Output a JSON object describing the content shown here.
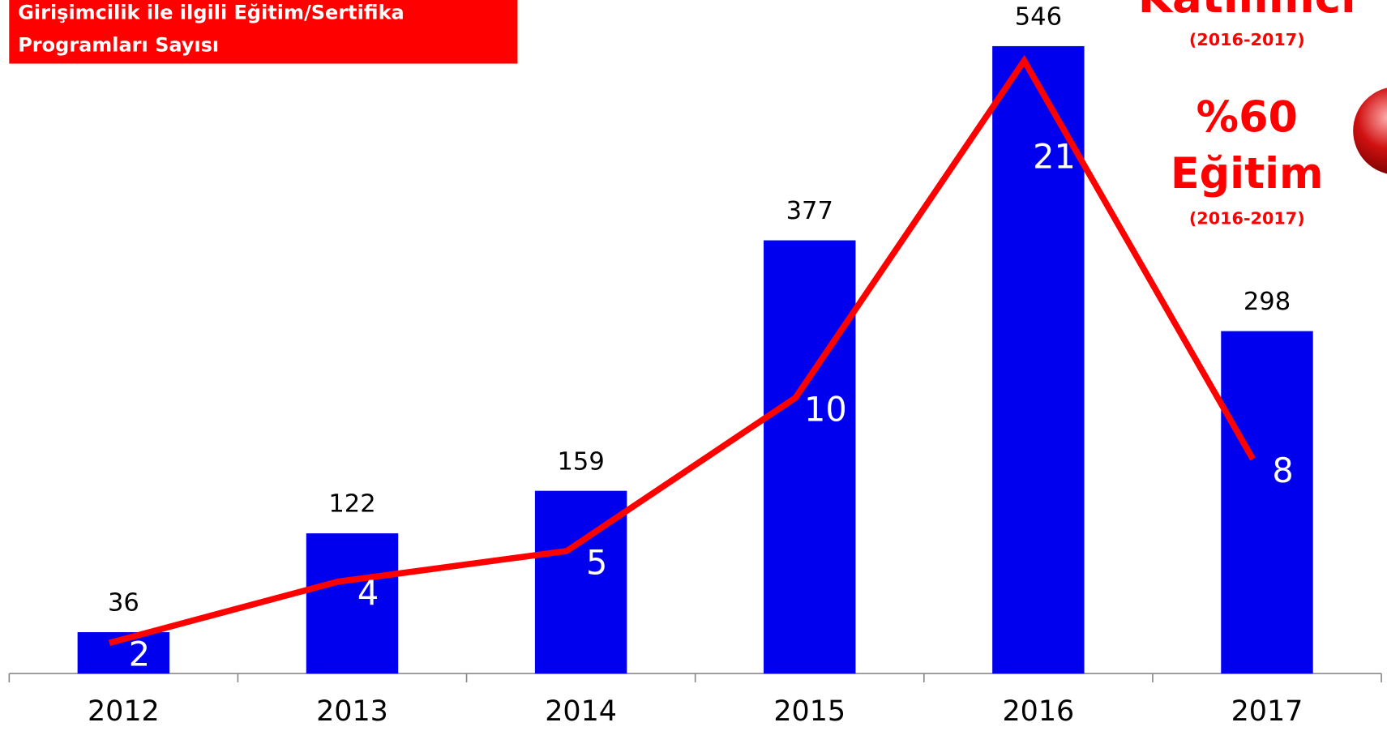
{
  "chart_data": {
    "type": "bar",
    "title_lines": [
      "Girişimcilik ile ilgili Eğitim/Sertifika",
      "Programları Sayısı"
    ],
    "annotations": [
      "Katılımcı",
      "(2016-2017)",
      "%60",
      "Eğitim",
      "(2016-2017)"
    ],
    "categories": [
      "2012",
      "2013",
      "2014",
      "2015",
      "2016",
      "2017"
    ],
    "series": [
      {
        "type": "bar",
        "color": "#0000ee",
        "values": [
          36,
          122,
          159,
          377,
          546,
          298
        ]
      },
      {
        "type": "line",
        "color": "#ff0000",
        "axis": "y2",
        "values": [
          2,
          4,
          5,
          10,
          21,
          8
        ]
      }
    ],
    "ylim": [
      0,
      560
    ],
    "y2lim": [
      1,
      22
    ]
  }
}
